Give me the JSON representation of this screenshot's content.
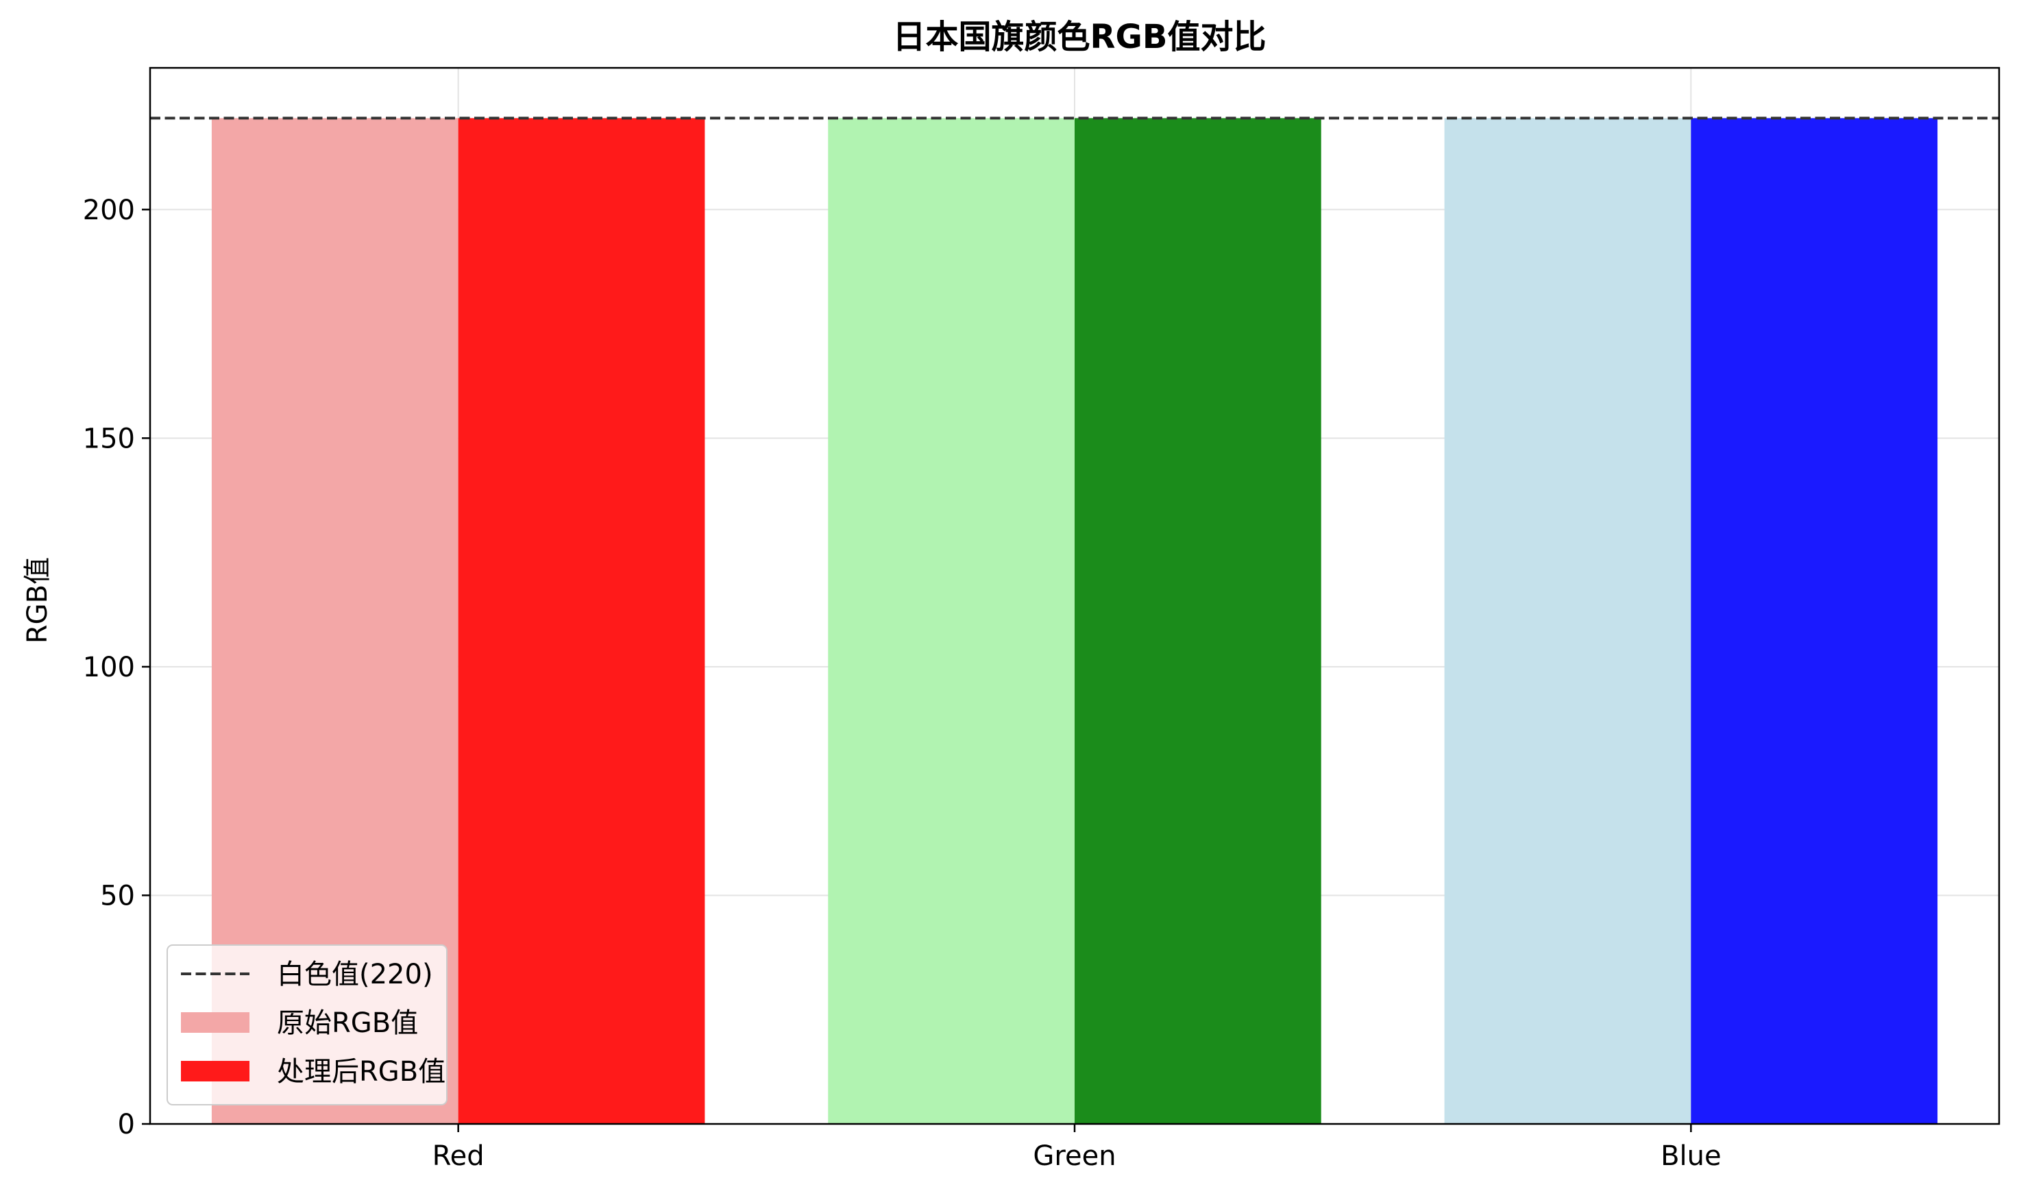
{
  "chart_data": {
    "type": "bar",
    "title": "日本国旗颜色RGB值对比",
    "xlabel": "",
    "ylabel": "RGB值",
    "categories": [
      "Red",
      "Green",
      "Blue"
    ],
    "ylim": [
      0,
      231
    ],
    "yticks": [
      0,
      50,
      100,
      150,
      200
    ],
    "grid": true,
    "legend_position": "lower-left",
    "reference_line": {
      "label": "白色值(220)",
      "value": 220,
      "color": "#333333",
      "style": "dashed"
    },
    "series": [
      {
        "name": "原始RGB值",
        "values": [
          220,
          220,
          220
        ],
        "colors": [
          "#f3a7a7",
          "#b1f3b1",
          "#c5e1eb"
        ],
        "legend_color": "#f3a7a7"
      },
      {
        "name": "处理后RGB值",
        "values": [
          220,
          220,
          220
        ],
        "colors": [
          "#ff1a1a",
          "#1b8c1b",
          "#1a1aff"
        ],
        "legend_color": "#ff1a1a"
      }
    ]
  }
}
